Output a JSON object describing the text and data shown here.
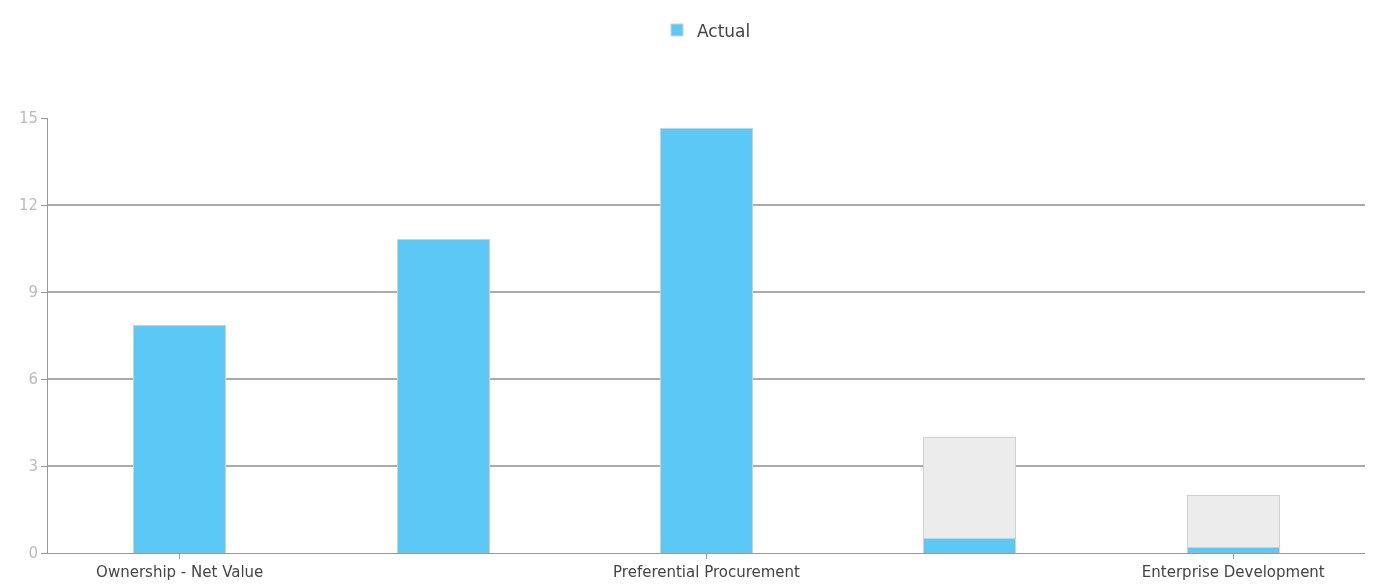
{
  "chart_data": {
    "type": "bar",
    "categories": [
      "Ownership - Net Value",
      null,
      "Preferential Procurement",
      null,
      "Enterprise Development"
    ],
    "series": [
      {
        "name": "Actual",
        "color": "#5bc8f5",
        "values": [
          7.85,
          10.8,
          14.65,
          0.5,
          0.2
        ]
      },
      {
        "color": "#ececec",
        "values": [
          null,
          null,
          null,
          3.5,
          1.8
        ]
      }
    ],
    "stacked": true,
    "ylim": [
      0,
      15
    ],
    "yticks": [
      0,
      3,
      6,
      9,
      12,
      15
    ],
    "grid": "y",
    "legend": "top"
  }
}
